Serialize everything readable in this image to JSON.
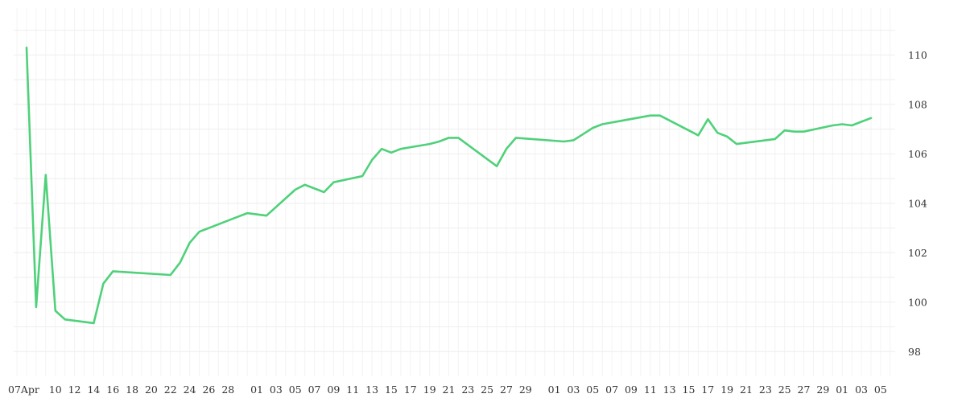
{
  "colors": {
    "line": "#4fd17a",
    "grid": "#eeeeee",
    "text": "#333333",
    "background": "#ffffff"
  },
  "chart_data": {
    "type": "line",
    "title": "",
    "xlabel": "",
    "ylabel": "",
    "ylim": [
      97,
      112
    ],
    "y_axis_side": "right",
    "y_ticks": [
      98,
      100,
      102,
      104,
      106,
      108,
      110
    ],
    "x_tick_labels": [
      "07Apr",
      "10",
      "12",
      "14",
      "16",
      "18",
      "20",
      "22",
      "24",
      "26",
      "28",
      "01",
      "03",
      "05",
      "07",
      "09",
      "11",
      "13",
      "15",
      "17",
      "19",
      "21",
      "23",
      "25",
      "27",
      "29",
      "01",
      "03",
      "05",
      "07",
      "09",
      "11",
      "13",
      "15",
      "17",
      "19",
      "21",
      "23",
      "25",
      "27",
      "29",
      "01",
      "03",
      "05"
    ],
    "grid": true,
    "series": [
      {
        "x": [
          "04-07",
          "04-08",
          "04-09",
          "04-10",
          "04-11",
          "04-14",
          "04-15",
          "04-16",
          "04-22",
          "04-23",
          "04-24",
          "04-25",
          "04-28",
          "04-29",
          "04-30",
          "05-02",
          "05-05",
          "05-06",
          "05-08",
          "05-09",
          "05-12",
          "05-13",
          "05-14",
          "05-15",
          "05-16",
          "05-19",
          "05-20",
          "05-21",
          "05-22",
          "05-26",
          "05-27",
          "05-28",
          "06-02",
          "06-03",
          "06-04",
          "06-05",
          "06-06",
          "06-11",
          "06-12",
          "06-16",
          "06-17",
          "06-18",
          "06-19",
          "06-20",
          "06-24",
          "06-25",
          "06-26",
          "06-27",
          "06-30",
          "07-01",
          "07-02",
          "07-03",
          "07-04"
        ],
        "y": [
          110.3,
          99.8,
          105.15,
          99.65,
          99.3,
          99.15,
          100.75,
          101.25,
          101.1,
          101.6,
          102.4,
          102.85,
          103.3,
          103.45,
          103.6,
          103.5,
          104.55,
          104.75,
          104.45,
          104.85,
          105.1,
          105.75,
          106.2,
          106.05,
          106.2,
          106.4,
          106.5,
          106.65,
          106.65,
          105.5,
          106.2,
          106.65,
          106.5,
          106.55,
          106.8,
          107.05,
          107.2,
          107.55,
          107.55,
          106.75,
          107.4,
          106.85,
          106.7,
          106.4,
          106.6,
          106.95,
          106.9,
          106.9,
          107.15,
          107.2,
          107.15,
          107.3,
          107.45
        ]
      }
    ]
  }
}
